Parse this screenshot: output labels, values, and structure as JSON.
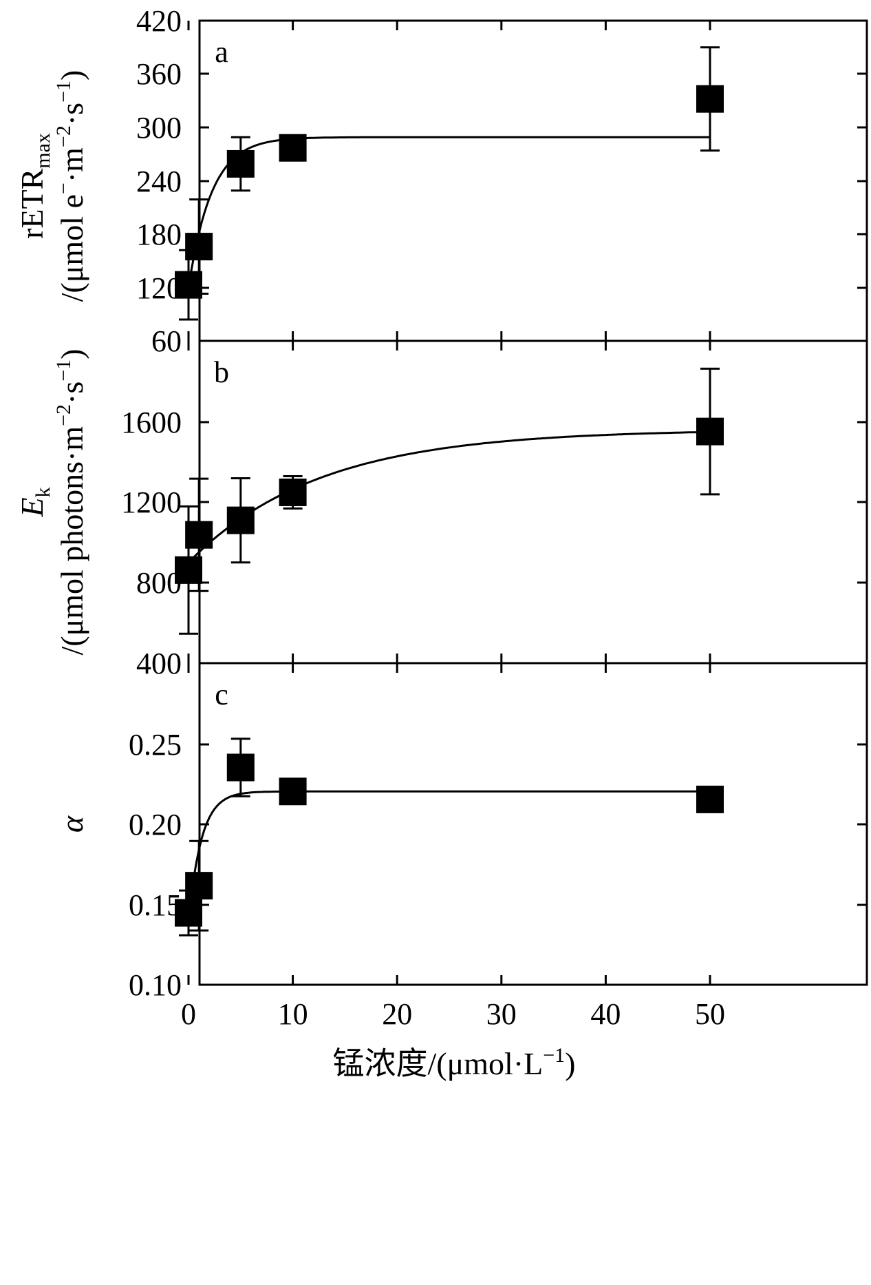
{
  "chart_data": {
    "type": "scatter",
    "xlabel": "锰浓度/(μmol·L⁻¹)",
    "xlabel_parts": {
      "main": "锰浓度/(μmol·L",
      "sup": "−1",
      "close": ")"
    },
    "x_ticks": [
      "0",
      "10",
      "20",
      "30",
      "40",
      "50"
    ],
    "xlim": [
      -2,
      52
    ],
    "panels": [
      {
        "letter": "a",
        "ylabel": "rETRmax /(μmol e⁻·m⁻²·s⁻¹)",
        "ylabel_parts": {
          "line1": "rETR",
          "line1_sub": "max",
          "line2": "/(μmol e",
          "line2_sup1": "−",
          "line2_mid": "·m",
          "line2_sup2": "−2",
          "line2_mid2": "·s",
          "line2_sup3": "−1",
          "line2_end": ")"
        },
        "ylim": [
          60,
          420
        ],
        "yticks": [
          "420",
          "360",
          "300",
          "240",
          "180",
          "120",
          "60"
        ],
        "x": [
          0,
          1,
          5,
          10,
          50
        ],
        "y": [
          123,
          166,
          259,
          277,
          332
        ],
        "yerr": [
          39,
          53,
          30,
          0,
          58
        ],
        "fit": {
          "plateau": 289,
          "y0": 120,
          "k": 0.45
        }
      },
      {
        "letter": "b",
        "ylabel": "Ek /(μmol photons·m⁻²·s⁻¹)",
        "ylabel_parts": {
          "line1": "E",
          "line1_sub": "k",
          "line2": "/(μmol photons·m",
          "line2_sup1": "−2",
          "line2_mid": "·s",
          "line2_sup2": "−1",
          "line2_end": ")"
        },
        "ylim": [
          400,
          2000
        ],
        "yticks": [
          "1600",
          "1200",
          "800",
          "400"
        ],
        "x": [
          0,
          1,
          5,
          10,
          50
        ],
        "y": [
          862,
          1037,
          1109,
          1248,
          1550
        ],
        "yerr": [
          316,
          279,
          209,
          80,
          312
        ],
        "fit": {
          "plateau": 1560,
          "y0": 900,
          "k": 0.08
        }
      },
      {
        "letter": "c",
        "ylabel": "α",
        "ylim": [
          0.1,
          0.3
        ],
        "yticks": [
          "0.25",
          "0.20",
          "0.15",
          "0.10"
        ],
        "x": [
          0,
          1,
          5,
          10,
          50
        ],
        "y": [
          0.145,
          0.162,
          0.236,
          0.221,
          0.216
        ],
        "yerr": [
          0.014,
          0.028,
          0.018,
          0.0,
          0.0
        ],
        "fit": {
          "plateau": 0.221,
          "y0": 0.14,
          "k": 0.8
        }
      }
    ]
  }
}
